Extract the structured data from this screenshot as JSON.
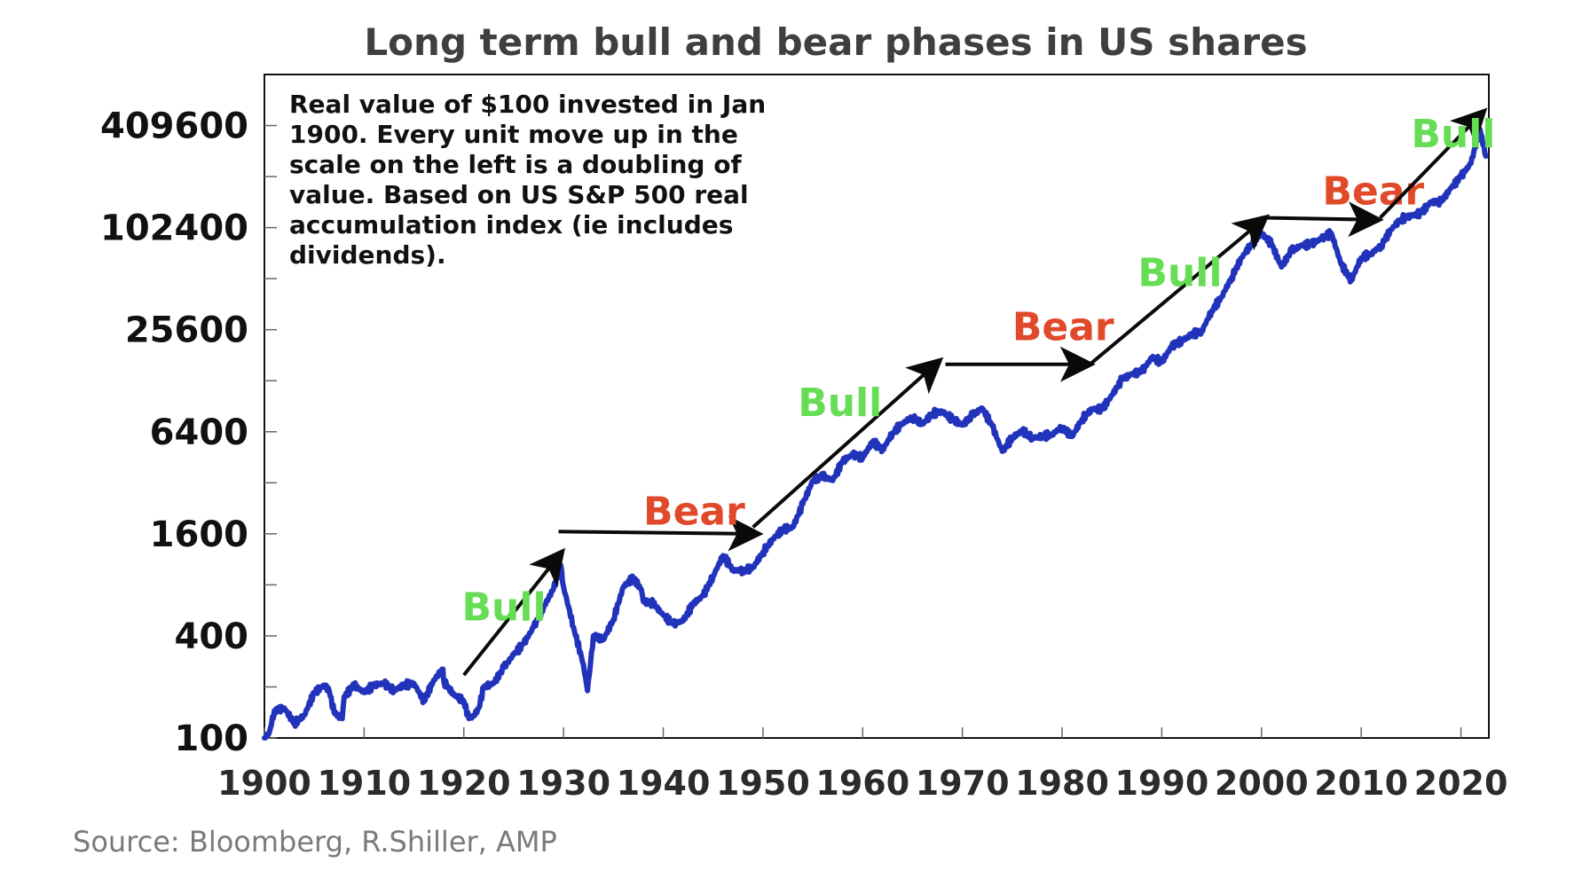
{
  "chart_data": {
    "type": "line",
    "title": "Long term bull and bear phases in US shares",
    "annotation_lines": [
      "Real value of $100 invested in Jan",
      "1900. Every unit move up in the",
      "scale on the left is a doubling of",
      "value. Based on US S&P 500 real",
      "accumulation index (ie includes",
      "dividends)."
    ],
    "source": "Source: Bloomberg, R.Shiller, AMP",
    "y_scale": "log2",
    "ylim": [
      100,
      819200
    ],
    "xlim": [
      1900,
      2022.8
    ],
    "y_ticks": [
      100,
      400,
      1600,
      6400,
      25600,
      102400,
      409600
    ],
    "y_tick_labels": [
      "100",
      "400",
      "1600",
      "6400",
      "25600",
      "102400",
      "409600"
    ],
    "x_ticks": [
      1900,
      1910,
      1920,
      1930,
      1940,
      1950,
      1960,
      1970,
      1980,
      1990,
      2000,
      2010,
      2020
    ],
    "x_tick_labels": [
      "1900",
      "1910",
      "1920",
      "1930",
      "1940",
      "1950",
      "1960",
      "1970",
      "1980",
      "1990",
      "2000",
      "2010",
      "2020"
    ],
    "line_color": "#2233bb",
    "series": [
      {
        "x": [
          1900,
          1900.5,
          1901,
          1902,
          1903,
          1904,
          1905,
          1906,
          1906.5,
          1907,
          1907.8,
          1908,
          1909,
          1910,
          1911,
          1912,
          1913,
          1914,
          1915,
          1916,
          1917,
          1917.9,
          1918,
          1919,
          1920,
          1920.5,
          1921,
          1921.5,
          1922,
          1923,
          1924,
          1925,
          1926,
          1927,
          1928,
          1929,
          1929.7,
          1930,
          1931,
          1932,
          1932.4,
          1933,
          1934,
          1935,
          1936,
          1937,
          1937.8,
          1938,
          1939,
          1940,
          1941,
          1942,
          1943,
          1944,
          1945,
          1946,
          1947,
          1948,
          1949,
          1950,
          1951,
          1952,
          1953,
          1954,
          1955,
          1956,
          1957,
          1958,
          1959,
          1960,
          1961,
          1962,
          1963,
          1964,
          1965,
          1966,
          1967,
          1968,
          1969,
          1970,
          1971,
          1972,
          1973,
          1974,
          1975,
          1976,
          1977,
          1978,
          1979,
          1980,
          1981,
          1982,
          1983,
          1984,
          1985,
          1986,
          1987,
          1988,
          1989,
          1990,
          1991,
          1992,
          1993,
          1994,
          1995,
          1996,
          1997,
          1998,
          1999,
          2000,
          2001,
          2002,
          2003,
          2004,
          2005,
          2006,
          2007,
          2008,
          2009,
          2010,
          2011,
          2012,
          2013,
          2014,
          2015,
          2016,
          2017,
          2018,
          2019,
          2020,
          2021,
          2021.9,
          2022.5
        ],
        "values": [
          100,
          108,
          145,
          150,
          122,
          136,
          185,
          205,
          190,
          140,
          130,
          175,
          205,
          185,
          205,
          210,
          190,
          205,
          210,
          165,
          220,
          255,
          215,
          180,
          165,
          130,
          135,
          150,
          200,
          210,
          260,
          310,
          360,
          450,
          590,
          760,
          1050,
          780,
          450,
          270,
          190,
          400,
          380,
          500,
          780,
          880,
          750,
          640,
          620,
          530,
          470,
          490,
          620,
          690,
          900,
          1190,
          980,
          970,
          1010,
          1250,
          1490,
          1700,
          1750,
          2400,
          3300,
          3500,
          3300,
          4300,
          4700,
          4500,
          5600,
          5000,
          6300,
          7200,
          7800,
          7100,
          8200,
          8400,
          7600,
          7000,
          8000,
          8800,
          6900,
          4900,
          5900,
          6500,
          5900,
          6000,
          6200,
          6800,
          6000,
          7600,
          8700,
          8700,
          10500,
          13000,
          14000,
          14500,
          17500,
          16500,
          20500,
          22000,
          24000,
          25000,
          33000,
          40000,
          52000,
          68000,
          82000,
          95000,
          82000,
          60000,
          75000,
          80000,
          82000,
          88000,
          95000,
          62000,
          50000,
          68000,
          72000,
          80000,
          100000,
          115000,
          120000,
          125000,
          145000,
          145000,
          175000,
          205000,
          245000,
          390000,
          270000
        ]
      }
    ],
    "phases": [
      {
        "label": "Bull",
        "type": "bull",
        "from": [
          1920.0,
          235
        ],
        "to": [
          1929.5,
          1180
        ],
        "label_at": [
          1919.8,
          600
        ]
      },
      {
        "label": "Bear",
        "type": "bear",
        "from": [
          1929.5,
          1650
        ],
        "to": [
          1949.0,
          1600
        ],
        "label_at": [
          1938.0,
          2200
        ]
      },
      {
        "label": "Bull",
        "type": "bull",
        "from": [
          1949.0,
          1750
        ],
        "to": [
          1967.3,
          16000
        ],
        "label_at": [
          1953.5,
          9600
        ]
      },
      {
        "label": "Bear",
        "type": "bear",
        "from": [
          1968.3,
          16000
        ],
        "to": [
          1982.3,
          16000
        ],
        "label_at": [
          1975.0,
          27000
        ]
      },
      {
        "label": "Bull",
        "type": "bull",
        "from": [
          1982.8,
          16000
        ],
        "to": [
          2000.0,
          112000
        ],
        "label_at": [
          1987.6,
          56000
        ]
      },
      {
        "label": "Bear",
        "type": "bear",
        "from": [
          2000.2,
          117000
        ],
        "to": [
          2011.2,
          114000
        ],
        "label_at": [
          2006.1,
          170000
        ]
      },
      {
        "label": "Bull",
        "type": "bull",
        "from": [
          2011.9,
          117000
        ],
        "to": [
          2021.9,
          470000
        ],
        "label_at": [
          2015.0,
          370000
        ]
      }
    ],
    "bull_color": "#66dd55",
    "bear_color": "#e04a2a",
    "arrow_color": "#0a0a0a",
    "grid": false,
    "legend": "none"
  }
}
